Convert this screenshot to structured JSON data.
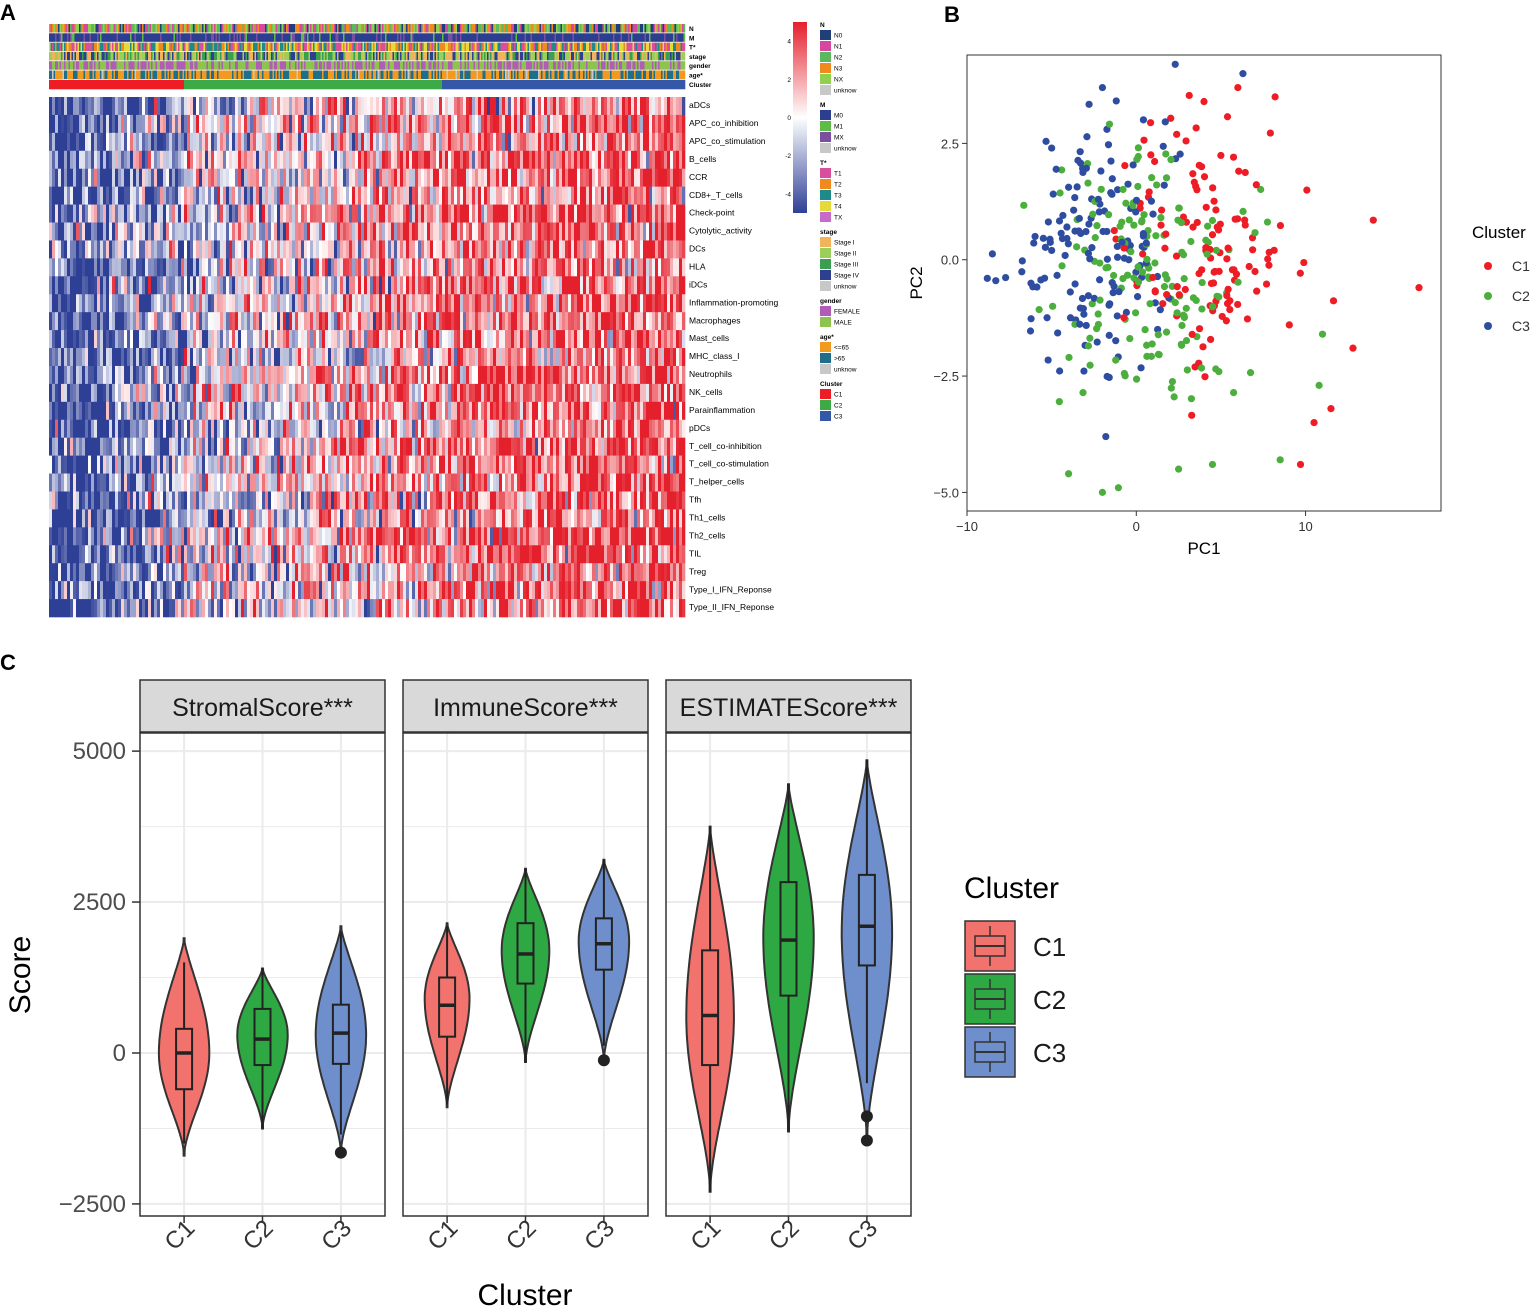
{
  "panel_labels": {
    "a": "A",
    "b": "B",
    "c": "C"
  },
  "colors": {
    "c1": "#EE1C25",
    "c2": "#4CAF3D",
    "c3": "#2E4DA0",
    "violin_c1": "#F2726D",
    "violin_c2": "#2EA843",
    "violin_c3": "#6E8FCC",
    "heat_low": "#2E3F96",
    "heat_mid": "#FFFFFF",
    "heat_high": "#E4202C"
  },
  "chart_data": [
    {
      "id": "heatmap",
      "type": "heatmap",
      "title": "",
      "annotation_tracks": [
        "N",
        "M",
        "T*",
        "stage",
        "gender",
        "age*",
        "Cluster"
      ],
      "rows": [
        "aDCs",
        "APC_co_inhibition",
        "APC_co_stimulation",
        "B_cells",
        "CCR",
        "CD8+_T_cells",
        "Check-point",
        "Cytolytic_activity",
        "DCs",
        "HLA",
        "iDCs",
        "Inflammation-promoting",
        "Macrophages",
        "Mast_cells",
        "MHC_class_I",
        "Neutrophils",
        "NK_cells",
        "Parainflammation",
        "pDCs",
        "T_cell_co-inhibition",
        "T_cell_co-stimulation",
        "T_helper_cells",
        "Tfh",
        "Th1_cells",
        "Th2_cells",
        "TIL",
        "Treg",
        "Type_I_IFN_Reponse",
        "Type_II_IFN_Reponse"
      ],
      "cluster_fraction": {
        "C1": 0.21,
        "C2": 0.41,
        "C3": 0.38
      },
      "colorbar": {
        "ticks": [
          "4",
          "2",
          "0",
          "-2",
          "-4"
        ],
        "range": [
          -5,
          5
        ]
      },
      "legend": [
        {
          "title": "N",
          "items": [
            "N0",
            "N1",
            "N2",
            "N3",
            "NX",
            "unknow"
          ],
          "colors": [
            "#1F3F7A",
            "#D6479F",
            "#5CB85C",
            "#F08A1E",
            "#8FD14F",
            "#C8C8C8"
          ]
        },
        {
          "title": "M",
          "items": [
            "M0",
            "M1",
            "MX",
            "unknow"
          ],
          "colors": [
            "#2C3E8F",
            "#5DBB47",
            "#7B4FA0",
            "#C8C8C8"
          ]
        },
        {
          "title": "T*",
          "items": [
            "T1",
            "T2",
            "T3",
            "T4",
            "TX"
          ],
          "colors": [
            "#D94F9C",
            "#F08A1E",
            "#1F8A8A",
            "#E6D93A",
            "#C86BC8"
          ]
        },
        {
          "title": "stage",
          "items": [
            "Stage I",
            "Stage II",
            "Stage III",
            "Stage IV",
            "unknow"
          ],
          "colors": [
            "#F0B55C",
            "#9CCF5A",
            "#3C9E4F",
            "#2E3F8F",
            "#C8C8C8"
          ]
        },
        {
          "title": "gender",
          "items": [
            "FEMALE",
            "MALE"
          ],
          "colors": [
            "#B25DB5",
            "#8CC44D"
          ]
        },
        {
          "title": "age*",
          "items": [
            "<=65",
            ">65",
            "unknow"
          ],
          "colors": [
            "#F29A1F",
            "#1F6E8A",
            "#C8C8C8"
          ]
        },
        {
          "title": "Cluster",
          "items": [
            "C1",
            "C2",
            "C3"
          ],
          "colors": [
            "#EE1C25",
            "#3DAA48",
            "#3557A8"
          ]
        }
      ]
    },
    {
      "id": "pca",
      "type": "scatter",
      "xlabel": "PC1",
      "ylabel": "PC2",
      "xlim": [
        -10,
        18
      ],
      "ylim": [
        -5.4,
        4.4
      ],
      "xticks": [
        -10,
        0,
        10
      ],
      "yticks": [
        -5.0,
        -2.5,
        0.0,
        2.5
      ],
      "xtick_labels": [
        "−10",
        "0",
        "10"
      ],
      "ytick_labels": [
        "−5.0",
        "−2.5",
        "0.0",
        "2.5"
      ],
      "legend_title": "Cluster",
      "legend_items": [
        "C1",
        "C2",
        "C3"
      ],
      "series": [
        {
          "name": "C1",
          "centroid": [
            4.2,
            0.3
          ],
          "spread": [
            3.4,
            1.9
          ],
          "count": 120,
          "outliers": [
            [
              14,
              0.85
            ],
            [
              16.7,
              -0.6
            ],
            [
              12.8,
              -1.9
            ],
            [
              11.5,
              -3.2
            ],
            [
              10.5,
              -3.5
            ],
            [
              9.7,
              -4.4
            ],
            [
              6.0,
              3.7
            ],
            [
              8.2,
              3.5
            ],
            [
              4.0,
              3.4
            ]
          ]
        },
        {
          "name": "C2",
          "centroid": [
            0.5,
            -0.3
          ],
          "spread": [
            3.6,
            1.8
          ],
          "count": 150,
          "outliers": [
            [
              -2.0,
              -5.0
            ],
            [
              -4.0,
              -4.6
            ],
            [
              2.5,
              -4.5
            ],
            [
              4.5,
              -4.4
            ],
            [
              8.5,
              -4.3
            ],
            [
              10.8,
              -2.7
            ],
            [
              11.0,
              -1.6
            ]
          ]
        },
        {
          "name": "C3",
          "centroid": [
            -2.5,
            0.2
          ],
          "spread": [
            2.8,
            1.7
          ],
          "count": 140,
          "outliers": [
            [
              -8.8,
              -0.4
            ],
            [
              -8.3,
              -0.45
            ],
            [
              2.3,
              4.2
            ],
            [
              6.3,
              4.0
            ],
            [
              -2.0,
              3.7
            ],
            [
              -5.0,
              2.4
            ],
            [
              -1.8,
              -3.8
            ]
          ]
        }
      ]
    },
    {
      "id": "estimate",
      "type": "violin",
      "ylabel": "Score",
      "xlabel": "Cluster",
      "ylim": [
        -2700,
        5300
      ],
      "yticks": [
        -2500,
        0,
        2500,
        5000
      ],
      "ytick_labels": [
        "−2500",
        "0",
        "2500",
        "5000"
      ],
      "categories": [
        "C1",
        "C2",
        "C3"
      ],
      "legend_title": "Cluster",
      "legend_items": [
        "C1",
        "C2",
        "C3"
      ],
      "facets": [
        {
          "title": "StromalScore***",
          "groups": [
            {
              "name": "C1",
              "min": -1700,
              "max": 1900,
              "q1": -600,
              "median": 0,
              "q3": 400,
              "wlo": -1500,
              "whi": 1500,
              "outliers": [],
              "mode": 0,
              "width": 0.9
            },
            {
              "name": "C2",
              "min": -1250,
              "max": 1400,
              "q1": -200,
              "median": 230,
              "q3": 730,
              "wlo": -1250,
              "whi": 1400,
              "outliers": [],
              "mode": 300,
              "width": 0.9
            },
            {
              "name": "C3",
              "min": -1650,
              "max": 2100,
              "q1": -180,
              "median": 330,
              "q3": 800,
              "wlo": -1350,
              "whi": 2000,
              "outliers": [
                -1650
              ],
              "mode": 300,
              "width": 0.9
            }
          ]
        },
        {
          "title": "ImmuneScore***",
          "groups": [
            {
              "name": "C1",
              "min": -900,
              "max": 2150,
              "q1": 270,
              "median": 790,
              "q3": 1250,
              "wlo": -850,
              "whi": 2100,
              "outliers": [],
              "mode": 900,
              "width": 0.8
            },
            {
              "name": "C2",
              "min": -150,
              "max": 3050,
              "q1": 1150,
              "median": 1640,
              "q3": 2150,
              "wlo": -150,
              "whi": 3050,
              "outliers": [],
              "mode": 1700,
              "width": 0.85
            },
            {
              "name": "C3",
              "min": -120,
              "max": 3200,
              "q1": 1380,
              "median": 1810,
              "q3": 2230,
              "wlo": 120,
              "whi": 3200,
              "outliers": [
                -120
              ],
              "mode": 1850,
              "width": 0.9
            }
          ]
        },
        {
          "title": "ESTIMATEScore***",
          "groups": [
            {
              "name": "C1",
              "min": -2300,
              "max": 3750,
              "q1": -200,
              "median": 620,
              "q3": 1700,
              "wlo": -2300,
              "whi": 3750,
              "outliers": [],
              "mode": 600,
              "width": 0.85
            },
            {
              "name": "C2",
              "min": -1300,
              "max": 4450,
              "q1": 950,
              "median": 1870,
              "q3": 2830,
              "wlo": -1300,
              "whi": 4450,
              "outliers": [],
              "mode": 1900,
              "width": 0.9
            },
            {
              "name": "C3",
              "min": -1450,
              "max": 4850,
              "q1": 1450,
              "median": 2100,
              "q3": 2950,
              "wlo": -500,
              "whi": 4850,
              "outliers": [
                -1050,
                -1450
              ],
              "mode": 2000,
              "width": 0.9
            }
          ]
        }
      ]
    }
  ]
}
